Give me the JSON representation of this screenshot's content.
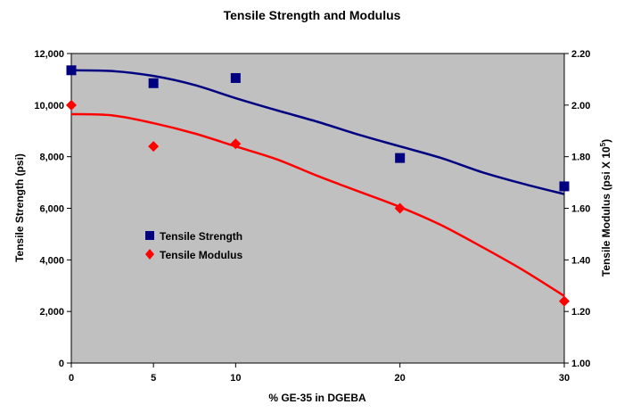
{
  "chart_data": {
    "type": "scatter",
    "title": "Tensile Strength and Modulus",
    "xlabel": "% GE-35 in DGEBA",
    "ylabel_left": "Tensile Strength (psi)",
    "ylabel_right_main": "Tensile Modulus (psi X 10",
    "ylabel_right_sup": "5",
    "ylabel_right_close": ")",
    "x_ticks": [
      "0",
      "5",
      "10",
      "20",
      "30"
    ],
    "x_tick_values": [
      0,
      5,
      10,
      20,
      30
    ],
    "xlim": [
      0,
      30
    ],
    "y_left_ticks": [
      "0",
      "2,000",
      "4,000",
      "6,000",
      "8,000",
      "10,000",
      "12,000"
    ],
    "y_left_tick_values": [
      0,
      2000,
      4000,
      6000,
      8000,
      10000,
      12000
    ],
    "ylim_left": [
      0,
      12000
    ],
    "y_right_ticks": [
      "1.00",
      "1.20",
      "1.40",
      "1.60",
      "1.80",
      "2.00",
      "2.20"
    ],
    "y_right_tick_values": [
      1.0,
      1.2,
      1.4,
      1.6,
      1.8,
      2.0,
      2.2
    ],
    "ylim_right": [
      1.0,
      2.2
    ],
    "legend_position": "left-center",
    "plot_background": "#c0c0c0",
    "series": [
      {
        "name": "Tensile Strength",
        "axis": "left",
        "marker": "square",
        "color": "#000080",
        "x": [
          0,
          5,
          10,
          20,
          30
        ],
        "y": [
          11350,
          10850,
          11050,
          7950,
          6850
        ],
        "trend_x": [
          0,
          2.5,
          5,
          7.5,
          10,
          12.5,
          15,
          17.5,
          20,
          22.5,
          25,
          27.5,
          30
        ],
        "trend_y": [
          11350,
          11320,
          11130,
          10780,
          10270,
          9800,
          9350,
          8850,
          8400,
          7950,
          7400,
          6950,
          6550
        ]
      },
      {
        "name": "Tensile Modulus",
        "axis": "right",
        "marker": "diamond",
        "color": "#ff0000",
        "x": [
          0,
          5,
          10,
          20,
          30
        ],
        "y": [
          2.0,
          1.84,
          1.85,
          1.6,
          1.24
        ],
        "trend_x": [
          0,
          2.5,
          5,
          7.5,
          10,
          12.5,
          15,
          17.5,
          20,
          22.5,
          25,
          27.5,
          30
        ],
        "trend_y": [
          1.965,
          1.96,
          1.93,
          1.89,
          1.84,
          1.79,
          1.725,
          1.665,
          1.605,
          1.535,
          1.45,
          1.36,
          1.26
        ]
      }
    ]
  }
}
